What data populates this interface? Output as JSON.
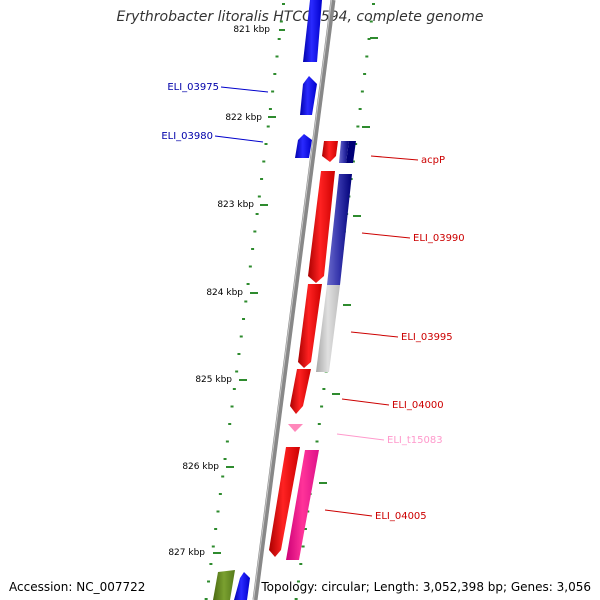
{
  "title": "Erythrobacter litoralis HTCC2594, complete genome",
  "footer": {
    "accession": "Accession: NC_007722",
    "topology": "Topology: circular; Length: 3,052,398 bp; Genes: 3,056"
  },
  "colors": {
    "backbone": "#888888",
    "tick": "#2e8b2e",
    "forward_gene": "#ff0000",
    "reverse_gene": "#0000ff",
    "trna_gene": "#ff99cc"
  },
  "kbp_ticks": [
    {
      "position_kbp": 821,
      "label": "821 kbp"
    },
    {
      "position_kbp": 822,
      "label": "822 kbp"
    },
    {
      "position_kbp": 823,
      "label": "823 kbp"
    },
    {
      "position_kbp": 824,
      "label": "824 kbp"
    },
    {
      "position_kbp": 825,
      "label": "825 kbp"
    },
    {
      "position_kbp": 826,
      "label": "826 kbp"
    },
    {
      "position_kbp": 827,
      "label": "827 kbp"
    }
  ],
  "gene_labels": [
    {
      "name": "ELI_03975",
      "strand": "reverse",
      "color": "#0000aa"
    },
    {
      "name": "ELI_03980",
      "strand": "reverse",
      "color": "#0000aa"
    },
    {
      "name": "acpP",
      "strand": "forward",
      "color": "#cc0000"
    },
    {
      "name": "ELI_03990",
      "strand": "forward",
      "color": "#cc0000"
    },
    {
      "name": "ELI_03995",
      "strand": "forward",
      "color": "#cc0000"
    },
    {
      "name": "ELI_04000",
      "strand": "forward",
      "color": "#cc0000"
    },
    {
      "name": "ELI_t15083",
      "strand": "forward",
      "color": "#ff99cc"
    },
    {
      "name": "ELI_04005",
      "strand": "forward",
      "color": "#cc0000"
    }
  ]
}
